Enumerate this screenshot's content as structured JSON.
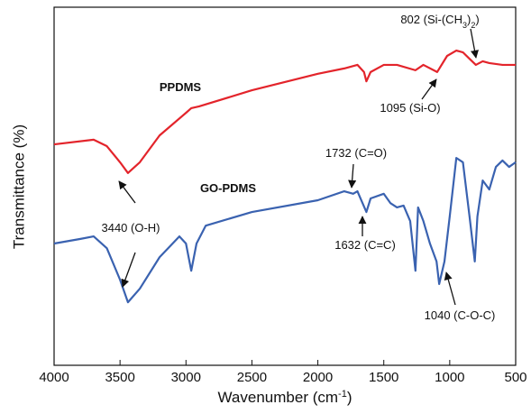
{
  "chart_data": {
    "type": "line",
    "x_label": [
      {
        "text": "Wavenumber (cm"
      },
      {
        "text": "-1",
        "sup": true
      },
      {
        "text": ")"
      }
    ],
    "y_label": "Transmittance (%)",
    "xlim": [
      4000,
      500
    ],
    "xticks": [
      4000,
      3500,
      3000,
      2500,
      2000,
      1500,
      1000,
      500
    ],
    "ylim": [
      0,
      100
    ],
    "series": [
      {
        "name": "PPDMS",
        "color": "#e3242b",
        "x": [
          4000,
          3700,
          3600,
          3500,
          3440,
          3350,
          3200,
          3000,
          2960,
          2900,
          2500,
          2000,
          1800,
          1700,
          1650,
          1632,
          1600,
          1500,
          1400,
          1260,
          1200,
          1095,
          1020,
          950,
          900,
          850,
          802,
          750,
          700,
          600,
          500
        ],
        "values": [
          61.7,
          63.0,
          61.2,
          56.7,
          53.7,
          56.7,
          64.2,
          70.5,
          71.8,
          72.3,
          76.8,
          81.4,
          82.9,
          83.9,
          81.9,
          79.3,
          81.9,
          83.9,
          83.9,
          82.4,
          83.9,
          81.9,
          86.4,
          87.9,
          87.4,
          85.6,
          83.9,
          84.9,
          84.4,
          83.9,
          83.9
        ]
      },
      {
        "name": "GO-PDMS",
        "color": "#3a62b0",
        "x": [
          4000,
          3800,
          3700,
          3600,
          3500,
          3440,
          3350,
          3200,
          3050,
          3000,
          2960,
          2920,
          2850,
          2500,
          2000,
          1800,
          1732,
          1700,
          1632,
          1600,
          1500,
          1450,
          1400,
          1350,
          1300,
          1260,
          1240,
          1200,
          1150,
          1100,
          1080,
          1040,
          1000,
          950,
          900,
          850,
          810,
          790,
          750,
          700,
          650,
          600,
          550,
          500
        ],
        "values": [
          34.0,
          35.3,
          36.0,
          32.7,
          23.9,
          17.6,
          21.4,
          30.2,
          36.0,
          34.0,
          26.4,
          34.0,
          39.0,
          42.8,
          46.1,
          48.6,
          47.9,
          48.6,
          42.8,
          46.6,
          47.9,
          45.3,
          44.1,
          44.6,
          40.3,
          26.4,
          44.1,
          40.3,
          34.0,
          29.0,
          22.7,
          29.0,
          41.6,
          57.9,
          56.7,
          41.6,
          29.0,
          41.6,
          51.6,
          49.1,
          55.4,
          57.2,
          55.4,
          56.7
        ]
      }
    ],
    "annotations": [
      {
        "parts": [
          {
            "text": "802 (Si-(CH"
          },
          {
            "text": "3",
            "sub": true
          },
          {
            "text": ")"
          },
          {
            "text": "2",
            "sub": true
          },
          {
            "text": ")"
          }
        ]
      },
      {
        "parts": [
          {
            "text": "1095 (Si-O)"
          }
        ]
      },
      {
        "parts": [
          {
            "text": "3440 (O-H)"
          }
        ]
      },
      {
        "parts": [
          {
            "text": "1732 (C=O)"
          }
        ]
      },
      {
        "parts": [
          {
            "text": "1632 (C=C)"
          }
        ]
      },
      {
        "parts": [
          {
            "text": "1040 (C-O-C)"
          }
        ]
      }
    ]
  }
}
